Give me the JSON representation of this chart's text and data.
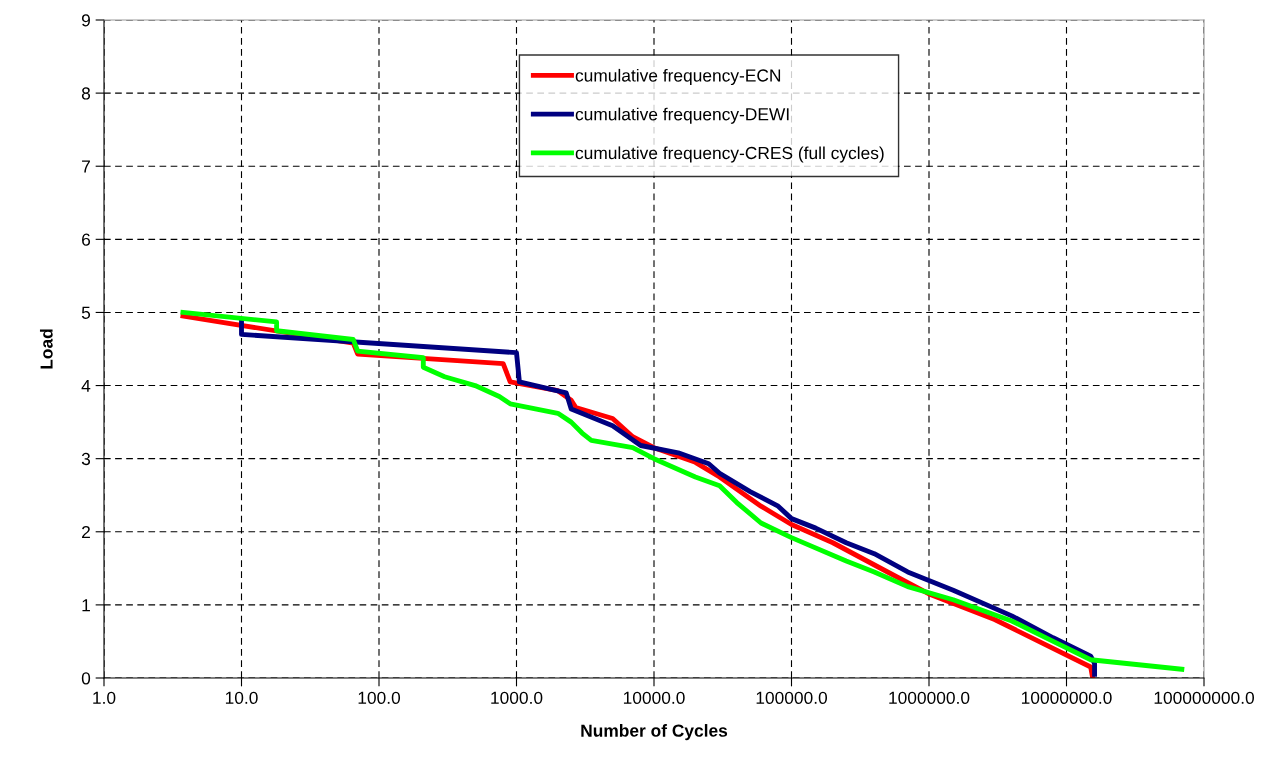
{
  "chart_data": {
    "type": "line",
    "xlabel": "Number of Cycles",
    "ylabel": "Load",
    "log": "x",
    "xlim": [
      1,
      100000000
    ],
    "xticks": [
      {
        "value": 1,
        "label": "1.0"
      },
      {
        "value": 10,
        "label": "10.0"
      },
      {
        "value": 100,
        "label": "100.0"
      },
      {
        "value": 1000,
        "label": "1000.0"
      },
      {
        "value": 10000,
        "label": "10000.0"
      },
      {
        "value": 100000,
        "label": "100000.0"
      },
      {
        "value": 1000000,
        "label": "1000000.0"
      },
      {
        "value": 10000000,
        "label": "10000000.0"
      },
      {
        "value": 100000000,
        "label": "100000000.0"
      }
    ],
    "ylim": [
      0,
      9
    ],
    "yticks": [
      0,
      1,
      2,
      3,
      4,
      5,
      6,
      7,
      8,
      9
    ],
    "grid": true,
    "legend": "top",
    "line_style": "solid",
    "marker": "none",
    "series": [
      {
        "name": "cumulative frequency-ECN",
        "color": "#ff0000",
        "x": [
          3.75,
          65,
          70,
          800,
          900,
          2000,
          2500,
          2700,
          5000,
          7000,
          10000,
          20000,
          30000,
          60000,
          100000,
          200000,
          500000,
          1000000,
          3000000,
          15000000,
          15500000
        ],
        "values": [
          4.95,
          4.58,
          4.43,
          4.3,
          4.05,
          3.93,
          3.8,
          3.7,
          3.55,
          3.3,
          3.15,
          2.95,
          2.75,
          2.35,
          2.1,
          1.85,
          1.45,
          1.15,
          0.8,
          0.15,
          0.0
        ]
      },
      {
        "name": "cumulative frequency-DEWI",
        "color": "#000080",
        "x": [
          10,
          10,
          1000,
          1050,
          2300,
          2500,
          5000,
          6500,
          8000,
          15000,
          25000,
          30000,
          50000,
          80000,
          100000,
          150000,
          250000,
          400000,
          700000,
          1500000,
          4000000,
          8000000,
          15000000,
          16000000,
          16000000
        ],
        "values": [
          4.9,
          4.7,
          4.45,
          4.05,
          3.9,
          3.68,
          3.45,
          3.3,
          3.18,
          3.08,
          2.93,
          2.8,
          2.55,
          2.35,
          2.18,
          2.05,
          1.85,
          1.7,
          1.45,
          1.2,
          0.85,
          0.55,
          0.3,
          0.2,
          0.05
        ]
      },
      {
        "name": "cumulative frequency-CRES (full cycles)",
        "color": "#00ff00",
        "x": [
          3.75,
          18,
          18,
          65,
          70,
          210,
          210,
          300,
          500,
          750,
          900,
          2000,
          2500,
          3000,
          3500,
          7000,
          10000,
          20000,
          30000,
          40000,
          60000,
          100000,
          250000,
          400000,
          700000,
          1500000,
          4000000,
          8000000,
          15000000,
          69000000
        ],
        "values": [
          5.0,
          4.87,
          4.75,
          4.63,
          4.47,
          4.38,
          4.25,
          4.12,
          4.0,
          3.85,
          3.75,
          3.62,
          3.5,
          3.35,
          3.25,
          3.15,
          3.0,
          2.75,
          2.63,
          2.4,
          2.12,
          1.92,
          1.6,
          1.45,
          1.25,
          1.07,
          0.78,
          0.5,
          0.25,
          0.12
        ]
      }
    ]
  }
}
